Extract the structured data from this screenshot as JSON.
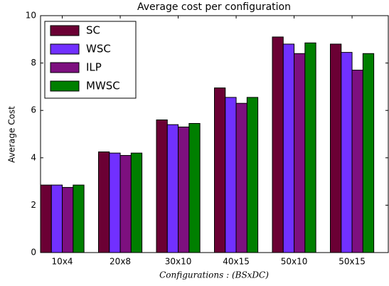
{
  "chart_data": {
    "type": "bar",
    "title": "Average cost per configuration",
    "x_label": "Configurations : (BSxDC)",
    "y_label": "Average Cost",
    "categories": [
      "10x4",
      "20x8",
      "30x10",
      "40x15",
      "50x10",
      "50x15"
    ],
    "series": [
      {
        "name": "SC",
        "color": "#6b0034",
        "values": [
          2.85,
          4.25,
          5.6,
          6.95,
          9.1,
          8.8
        ]
      },
      {
        "name": "WSC",
        "color": "#7130ff",
        "values": [
          2.85,
          4.2,
          5.4,
          6.55,
          8.8,
          8.45
        ]
      },
      {
        "name": "ILP",
        "color": "#7d107f",
        "values": [
          2.75,
          4.1,
          5.3,
          6.3,
          8.4,
          7.7
        ]
      },
      {
        "name": "MWSC",
        "color": "#007f00",
        "values": [
          2.85,
          4.2,
          5.45,
          6.55,
          8.85,
          8.4
        ]
      }
    ],
    "ylim": [
      0,
      10
    ],
    "yticks": [
      0,
      2,
      4,
      6,
      8,
      10
    ],
    "grid": false,
    "legend": "upper left"
  }
}
